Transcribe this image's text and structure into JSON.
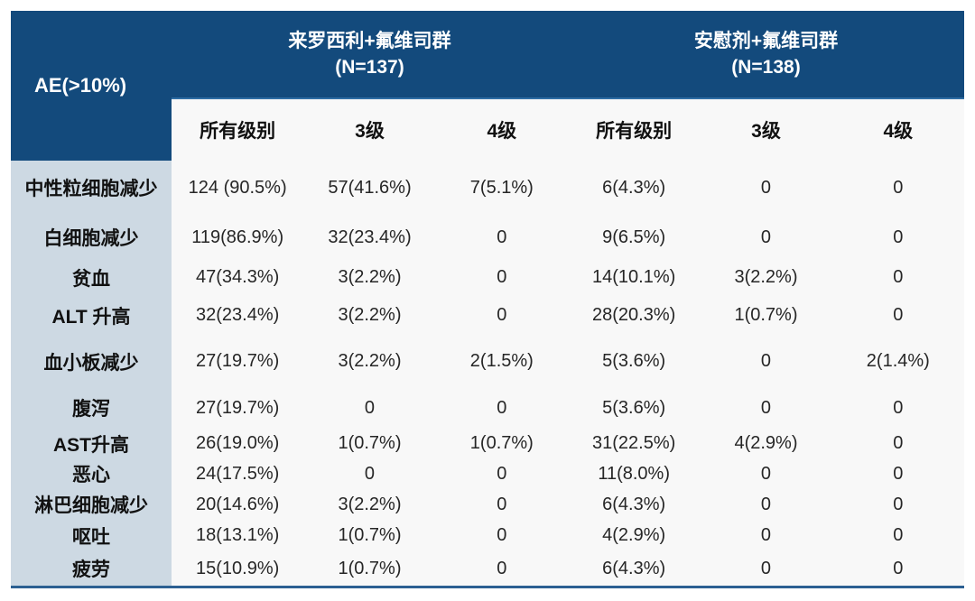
{
  "colors": {
    "header_bg": "#134a7c",
    "header_divider": "#2e6da4",
    "label_column_bg": "#cdd9e3",
    "body_bg": "#f8f8f8",
    "bottom_line": "#2c6092",
    "header_text": "#ffffff",
    "body_text": "#262626"
  },
  "chart_data": {
    "type": "table",
    "title": "",
    "corner_header": "AE(>10%)",
    "column_groups": [
      {
        "label": "来罗西利+氟维司群",
        "n": "(N=137)",
        "span": 3
      },
      {
        "label": "安慰剂+氟维司群",
        "n": "(N=138)",
        "span": 3
      }
    ],
    "columns": [
      "所有级别",
      "3级",
      "4级",
      "所有级别",
      "3级",
      "4级"
    ],
    "rows": [
      {
        "label": "中性粒细胞减少",
        "values": [
          "124 (90.5%)",
          "57(41.6%)",
          "7(5.1%)",
          "6(4.3%)",
          "0",
          "0"
        ]
      },
      {
        "label": "白细胞减少",
        "values": [
          "119(86.9%)",
          "32(23.4%)",
          "0",
          "9(6.5%)",
          "0",
          "0"
        ]
      },
      {
        "label": "贫血",
        "values": [
          "47(34.3%)",
          "3(2.2%)",
          "0",
          "14(10.1%)",
          "3(2.2%)",
          "0"
        ]
      },
      {
        "label": "ALT 升高",
        "values": [
          "32(23.4%)",
          "3(2.2%)",
          "0",
          "28(20.3%)",
          "1(0.7%)",
          "0"
        ]
      },
      {
        "label": "血小板减少",
        "values": [
          "27(19.7%)",
          "3(2.2%)",
          "2(1.5%)",
          "5(3.6%)",
          "0",
          "2(1.4%)"
        ]
      },
      {
        "label": "腹泻",
        "values": [
          "27(19.7%)",
          "0",
          "0",
          "5(3.6%)",
          "0",
          "0"
        ]
      },
      {
        "label": "AST升高",
        "values": [
          "26(19.0%)",
          "1(0.7%)",
          "1(0.7%)",
          "31(22.5%)",
          "4(2.9%)",
          "0"
        ]
      },
      {
        "label": "恶心",
        "values": [
          "24(17.5%)",
          "0",
          "0",
          "11(8.0%)",
          "0",
          "0"
        ]
      },
      {
        "label": "淋巴细胞减少",
        "values": [
          "20(14.6%)",
          "3(2.2%)",
          "0",
          "6(4.3%)",
          "0",
          "0"
        ]
      },
      {
        "label": "呕吐",
        "values": [
          "18(13.1%)",
          "1(0.7%)",
          "0",
          "4(2.9%)",
          "0",
          "0"
        ]
      },
      {
        "label": "疲劳",
        "values": [
          "15(10.9%)",
          "1(0.7%)",
          "0",
          "6(4.3%)",
          "0",
          "0"
        ]
      }
    ]
  }
}
